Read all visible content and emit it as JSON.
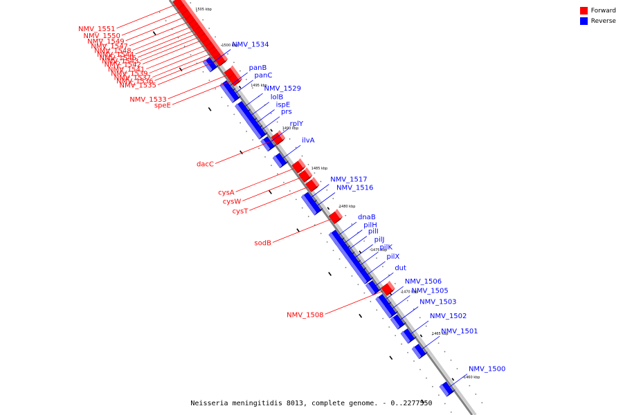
{
  "caption": "Neisseria meningitidis 8013, complete genome. - 0..2277550",
  "legend": [
    {
      "label": "Forward",
      "color": "#ff0000"
    },
    {
      "label": "Reverse",
      "color": "#0000ff"
    }
  ],
  "ticks": [
    {
      "label": "1505 kbp",
      "t": 0.035
    },
    {
      "label": "1500 kbp",
      "t": 0.122
    },
    {
      "label": "1495 kbp",
      "t": 0.218
    },
    {
      "label": "1490 kbp",
      "t": 0.322
    },
    {
      "label": "1485 kbp",
      "t": 0.418
    },
    {
      "label": "1480 kbp",
      "t": 0.51
    },
    {
      "label": "1475 kbp",
      "t": 0.615
    },
    {
      "label": "1470 kbp",
      "t": 0.716
    },
    {
      "label": "1465 kbp",
      "t": 0.817
    },
    {
      "label": "1460 kbp",
      "t": 0.922
    }
  ],
  "forward_genes": [
    {
      "name": "NMV_1551",
      "t": 0.016
    },
    {
      "name": "NMV_1550",
      "t": 0.033
    },
    {
      "name": "NMV_1549",
      "t": 0.046
    },
    {
      "name": "NMV_1547",
      "t": 0.058
    },
    {
      "name": "NMV_1548",
      "t": 0.069
    },
    {
      "name": "NMV_1544",
      "t": 0.078
    },
    {
      "name": "NMV_1546",
      "t": 0.086
    },
    {
      "name": "NMV_1543",
      "t": 0.094
    },
    {
      "name": "NMV_1542",
      "t": 0.102
    },
    {
      "name": "NMV_1541",
      "t": 0.114
    },
    {
      "name": "NMV_1539",
      "t": 0.124
    },
    {
      "name": "NMV_1537",
      "t": 0.134
    },
    {
      "name": "NMV_1536",
      "t": 0.142
    },
    {
      "name": "NMV_1535",
      "t": 0.152
    },
    {
      "name": "NMV_1533",
      "t": 0.186
    },
    {
      "name": "speE",
      "t": 0.2
    },
    {
      "name": "dacC",
      "t": 0.342
    },
    {
      "name": "cysA",
      "t": 0.41
    },
    {
      "name": "cysW",
      "t": 0.432
    },
    {
      "name": "cysT",
      "t": 0.455
    },
    {
      "name": "sodB",
      "t": 0.532
    },
    {
      "name": "NMV_1508",
      "t": 0.705
    }
  ],
  "reverse_genes": [
    {
      "name": "NMV_1534",
      "t": 0.148
    },
    {
      "name": "panB",
      "t": 0.204
    },
    {
      "name": "panC",
      "t": 0.222
    },
    {
      "name": "NMV_1529",
      "t": 0.254
    },
    {
      "name": "lolB",
      "t": 0.275
    },
    {
      "name": "ispE",
      "t": 0.293
    },
    {
      "name": "prs",
      "t": 0.31
    },
    {
      "name": "rplY",
      "t": 0.339
    },
    {
      "name": "ilvA",
      "t": 0.379
    },
    {
      "name": "NMV_1517",
      "t": 0.473
    },
    {
      "name": "NMV_1516",
      "t": 0.493
    },
    {
      "name": "dnaB",
      "t": 0.564
    },
    {
      "name": "pilH",
      "t": 0.583
    },
    {
      "name": "pilI",
      "t": 0.598
    },
    {
      "name": "pilJ",
      "t": 0.618
    },
    {
      "name": "pilK",
      "t": 0.636
    },
    {
      "name": "pilX",
      "t": 0.659
    },
    {
      "name": "dut",
      "t": 0.686
    },
    {
      "name": "NMV_1506",
      "t": 0.719
    },
    {
      "name": "NMV_1505",
      "t": 0.741
    },
    {
      "name": "NMV_1503",
      "t": 0.768
    },
    {
      "name": "NMV_1502",
      "t": 0.802
    },
    {
      "name": "NMV_1501",
      "t": 0.839
    },
    {
      "name": "NMV_1500",
      "t": 0.93
    }
  ]
}
